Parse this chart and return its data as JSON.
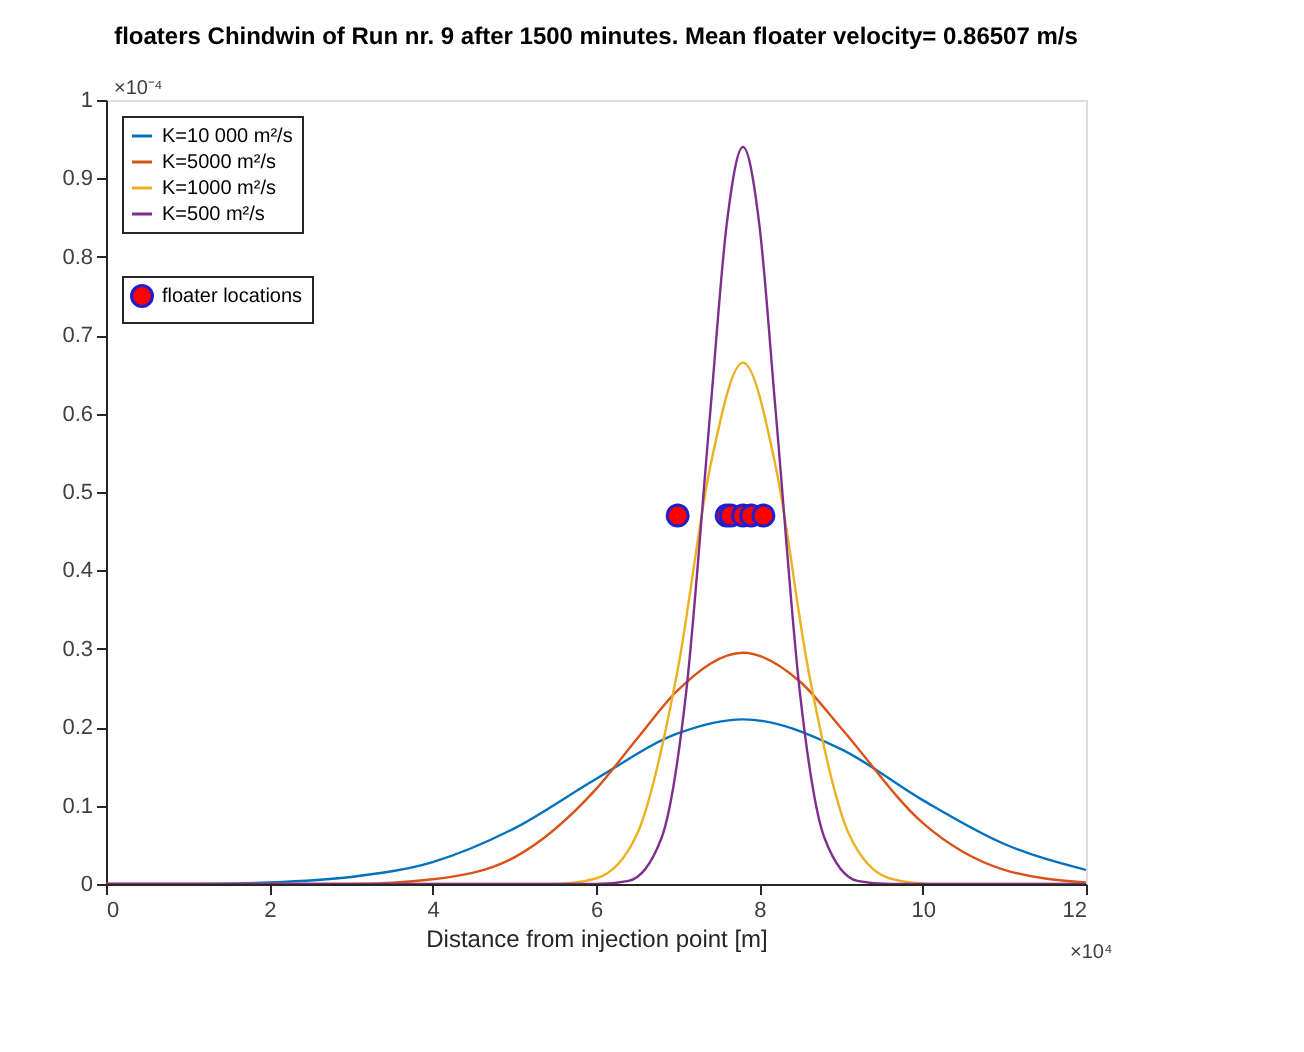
{
  "chart_data": {
    "type": "line",
    "title": "floaters Chindwin of Run nr. 9 after 1500 minutes. Mean floater velocity= 0.86507 m/s",
    "xlabel": "Distance from injection point [m]",
    "xlim": [
      0,
      12
    ],
    "xticks": [
      0,
      2,
      4,
      6,
      8,
      10,
      12
    ],
    "ylim": [
      0,
      1
    ],
    "yticks": [
      0,
      0.1,
      0.2,
      0.3,
      0.4,
      0.5,
      0.6,
      0.7,
      0.8,
      0.9,
      1
    ],
    "grid": false,
    "legend": "top left",
    "annotations": [
      "×10⁴",
      "×10⁻⁴"
    ],
    "series": [
      {
        "name": "K=10 000 m²/s",
        "color": "#0072bd",
        "x": [
          0,
          1,
          2,
          3,
          4,
          5,
          6,
          7,
          7.8,
          9,
          10,
          11,
          12
        ],
        "values": [
          0,
          0,
          0.002,
          0.009,
          0.028,
          0.071,
          0.134,
          0.192,
          0.21,
          0.172,
          0.107,
          0.051,
          0.018
        ]
      },
      {
        "name": "K=5000 m²/s",
        "color": "#d95319",
        "x": [
          0,
          3,
          4,
          5,
          6,
          6.5,
          7,
          7.8,
          8.5,
          9,
          10,
          11,
          12
        ],
        "values": [
          0,
          0,
          0.006,
          0.034,
          0.121,
          0.185,
          0.247,
          0.295,
          0.258,
          0.199,
          0.078,
          0.018,
          0.002
        ]
      },
      {
        "name": "K=1000 m²/s",
        "color": "#edb120",
        "x": [
          0,
          5.5,
          6,
          6.5,
          7,
          7.4,
          7.8,
          8.2,
          8.6,
          9.1,
          9.6,
          10.1,
          12
        ],
        "values": [
          0,
          0,
          0.007,
          0.063,
          0.273,
          0.533,
          0.665,
          0.533,
          0.273,
          0.063,
          0.007,
          0,
          0
        ]
      },
      {
        "name": "K=500 m²/s",
        "color": "#7e2f8e",
        "x": [
          0,
          6,
          6.4,
          6.8,
          7.1,
          7.4,
          7.6,
          7.8,
          8.0,
          8.2,
          8.5,
          8.8,
          9.2,
          9.6,
          12
        ],
        "values": [
          0,
          0,
          0.004,
          0.058,
          0.241,
          0.603,
          0.841,
          0.94,
          0.841,
          0.603,
          0.241,
          0.058,
          0.004,
          0,
          0
        ]
      },
      {
        "name": "floater locations",
        "type": "scatter",
        "color": "#ff0000",
        "marker": "circle",
        "x": [
          7.0,
          7.6,
          7.65,
          7.8,
          7.9,
          8.05
        ],
        "values": [
          0.47,
          0.47,
          0.47,
          0.47,
          0.47,
          0.47
        ]
      }
    ]
  }
}
